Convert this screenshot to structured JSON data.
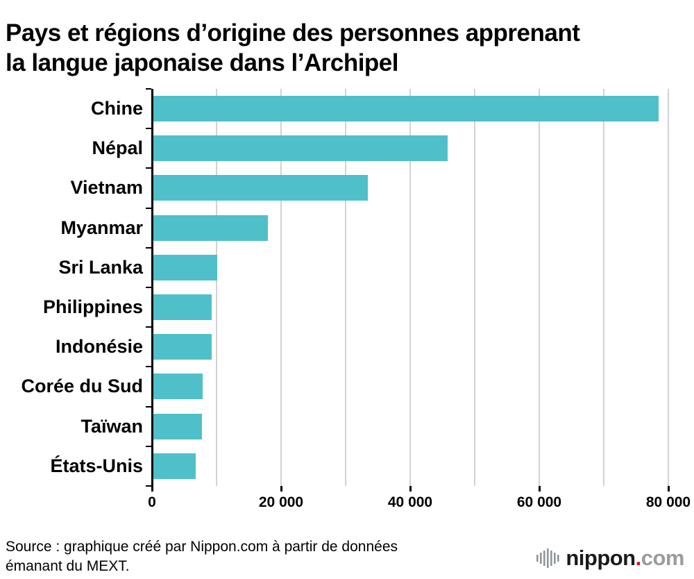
{
  "title_lines": {
    "l1": "Pays et régions d’origine des personnes apprenant",
    "l2": "la langue japonaise dans l’Archipel"
  },
  "chart_data": {
    "type": "bar",
    "orientation": "horizontal",
    "title": "Pays et régions d’origine des personnes apprenant la langue japonaise dans l’Archipel",
    "categories": [
      "Chine",
      "Népal",
      "Vietnam",
      "Myanmar",
      "Sri Lanka",
      "Philippines",
      "Indonésie",
      "Corée du Sud",
      "Taïwan",
      "États-Unis"
    ],
    "values": [
      78500,
      45800,
      33400,
      18000,
      10100,
      9300,
      9300,
      7800,
      7700,
      6800
    ],
    "xlim": [
      0,
      80000
    ],
    "x_ticks": [
      0,
      20000,
      40000,
      60000,
      80000
    ],
    "x_tick_labels": [
      "0",
      "20 000",
      "40 000",
      "60 000",
      "80 000"
    ],
    "grid_step": 10000,
    "grid": true,
    "legend": false,
    "bar_color": "#4fc0c9",
    "grid_color": "#d2d2d2",
    "axis_color": "#000000"
  },
  "source": {
    "line1": "Source : graphique créé par Nippon.com à partir de données",
    "line2": "émanant du MEXT."
  },
  "logo": {
    "icon": "signal-bars-icon",
    "name": "nippon",
    "dot": ".",
    "tld": "com",
    "dot_color": "#e60012",
    "text_color": "#1a1a1a",
    "tld_color": "#9b9b9b",
    "icon_color": "#8f959d"
  }
}
